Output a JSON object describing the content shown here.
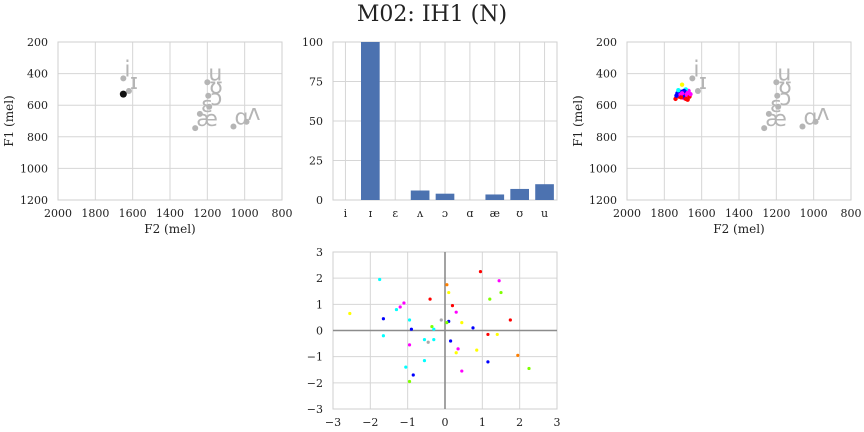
{
  "title": "M02: IH1 (N)",
  "vowel_labels": [
    "i",
    "ɪ",
    "ɛ",
    "ʌ",
    "ɔ",
    "ɑ",
    "æ",
    "ʊ",
    "u"
  ],
  "chart_data": [
    {
      "type": "scatter",
      "name": "formant-left",
      "xlabel": "F2 (mel)",
      "ylabel": "F1 (mel)",
      "xlim": [
        2000,
        800
      ],
      "ylim": [
        1200,
        200
      ],
      "xticks": [
        "2000",
        "1800",
        "1600",
        "1400",
        "1200",
        "1000",
        "800"
      ],
      "yticks": [
        "200",
        "400",
        "600",
        "800",
        "1000",
        "1200"
      ],
      "grid": true,
      "vowel_positions": [
        {
          "label": "i",
          "x": 1650,
          "y": 430
        },
        {
          "label": "ɪ",
          "x": 1620,
          "y": 510
        },
        {
          "label": "ɛ",
          "x": 1240,
          "y": 655
        },
        {
          "label": "ʌ",
          "x": 990,
          "y": 705
        },
        {
          "label": "ɔ",
          "x": 1190,
          "y": 610
        },
        {
          "label": "ɑ",
          "x": 1060,
          "y": 735
        },
        {
          "label": "æ",
          "x": 1265,
          "y": 745
        },
        {
          "label": "ʊ",
          "x": 1195,
          "y": 540
        },
        {
          "label": "u",
          "x": 1200,
          "y": 455
        }
      ],
      "highlight": {
        "x": 1650,
        "y": 530
      }
    },
    {
      "type": "bar",
      "name": "bar-middle",
      "categories": [
        "i",
        "ɪ",
        "ɛ",
        "ʌ",
        "ɔ",
        "ɑ",
        "æ",
        "ʊ",
        "u"
      ],
      "values": [
        0,
        100,
        0,
        6,
        4,
        0,
        3.5,
        7,
        10
      ],
      "ylim": [
        0,
        100
      ],
      "yticks": [
        "0",
        "25",
        "50",
        "75",
        "100"
      ],
      "grid": true,
      "color": "#4c72b0"
    },
    {
      "type": "scatter",
      "name": "formant-right",
      "xlabel": "F2 (mel)",
      "ylabel": "F1 (mel)",
      "xlim": [
        2000,
        800
      ],
      "ylim": [
        1200,
        200
      ],
      "xticks": [
        "2000",
        "1800",
        "1600",
        "1400",
        "1200",
        "1000",
        "800"
      ],
      "yticks": [
        "200",
        "400",
        "600",
        "800",
        "1000",
        "1200"
      ],
      "grid": true,
      "points": [
        {
          "x": 1700,
          "y": 520,
          "color": "#0000ff"
        },
        {
          "x": 1690,
          "y": 530,
          "color": "#ff0000"
        },
        {
          "x": 1680,
          "y": 540,
          "color": "#ff00ff"
        },
        {
          "x": 1710,
          "y": 515,
          "color": "#0000ff"
        },
        {
          "x": 1720,
          "y": 545,
          "color": "#ff0000"
        },
        {
          "x": 1670,
          "y": 510,
          "color": "#ff00ff"
        },
        {
          "x": 1695,
          "y": 555,
          "color": "#ff00ff"
        },
        {
          "x": 1730,
          "y": 525,
          "color": "#0000ff"
        },
        {
          "x": 1685,
          "y": 500,
          "color": "#00ffff"
        },
        {
          "x": 1705,
          "y": 470,
          "color": "#ffff00"
        },
        {
          "x": 1740,
          "y": 560,
          "color": "#ff0000"
        },
        {
          "x": 1675,
          "y": 565,
          "color": "#ff0000"
        },
        {
          "x": 1690,
          "y": 515,
          "color": "#0000ff"
        },
        {
          "x": 1715,
          "y": 535,
          "color": "#ff00ff"
        },
        {
          "x": 1665,
          "y": 545,
          "color": "#ff0000"
        },
        {
          "x": 1700,
          "y": 545,
          "color": "#0000ff"
        },
        {
          "x": 1725,
          "y": 505,
          "color": "#00ffff"
        },
        {
          "x": 1680,
          "y": 525,
          "color": "#ff00ff"
        },
        {
          "x": 1710,
          "y": 550,
          "color": "#ff0000"
        },
        {
          "x": 1695,
          "y": 510,
          "color": "#0000ff"
        },
        {
          "x": 1660,
          "y": 530,
          "color": "#ff00ff"
        },
        {
          "x": 1735,
          "y": 540,
          "color": "#0000ff"
        },
        {
          "x": 1685,
          "y": 560,
          "color": "#ff0000"
        },
        {
          "x": 1705,
          "y": 525,
          "color": "#ff00ff"
        }
      ]
    },
    {
      "type": "scatter",
      "name": "scatter-bottom",
      "xlim": [
        -3,
        3
      ],
      "ylim": [
        -3,
        3
      ],
      "xticks": [
        "−3",
        "−2",
        "−1",
        "0",
        "1",
        "2",
        "3"
      ],
      "yticks": [
        "−3",
        "−2",
        "−1",
        "0",
        "1",
        "2",
        "3"
      ],
      "grid": true,
      "points": [
        {
          "x": 0.95,
          "y": 2.25,
          "color": "#ff0000"
        },
        {
          "x": -1.75,
          "y": 1.95,
          "color": "#00ffff"
        },
        {
          "x": 1.45,
          "y": 1.9,
          "color": "#ff00ff"
        },
        {
          "x": 0.05,
          "y": 1.75,
          "color": "#ff7f00"
        },
        {
          "x": 0.1,
          "y": 1.45,
          "color": "#ffff00"
        },
        {
          "x": 1.5,
          "y": 1.45,
          "color": "#7fff00"
        },
        {
          "x": -0.4,
          "y": 1.2,
          "color": "#ff0000"
        },
        {
          "x": 1.2,
          "y": 1.2,
          "color": "#7fff00"
        },
        {
          "x": -1.1,
          "y": 1.05,
          "color": "#ff00ff"
        },
        {
          "x": 0.2,
          "y": 0.95,
          "color": "#ff0000"
        },
        {
          "x": -1.2,
          "y": 0.9,
          "color": "#ff00ff"
        },
        {
          "x": 0.3,
          "y": 0.7,
          "color": "#ff00ff"
        },
        {
          "x": -1.3,
          "y": 0.8,
          "color": "#00ffff"
        },
        {
          "x": -2.55,
          "y": 0.65,
          "color": "#ffff00"
        },
        {
          "x": -1.65,
          "y": 0.45,
          "color": "#0000ff"
        },
        {
          "x": -0.95,
          "y": 0.4,
          "color": "#00ffff"
        },
        {
          "x": -0.1,
          "y": 0.4,
          "color": "#aaaaaa"
        },
        {
          "x": 0.1,
          "y": 0.35,
          "color": "#0000ff"
        },
        {
          "x": 0.05,
          "y": 0.3,
          "color": "#7fff00"
        },
        {
          "x": 0.45,
          "y": 0.3,
          "color": "#ffff00"
        },
        {
          "x": 1.75,
          "y": 0.4,
          "color": "#ff0000"
        },
        {
          "x": -0.9,
          "y": 0.05,
          "color": "#0000ff"
        },
        {
          "x": -0.35,
          "y": 0.15,
          "color": "#7fff00"
        },
        {
          "x": -0.3,
          "y": 0.05,
          "color": "#00ffff"
        },
        {
          "x": 0.75,
          "y": 0.1,
          "color": "#0000ff"
        },
        {
          "x": 1.4,
          "y": -0.15,
          "color": "#ffff00"
        },
        {
          "x": 1.15,
          "y": -0.15,
          "color": "#ff0000"
        },
        {
          "x": -1.65,
          "y": -0.2,
          "color": "#00ffff"
        },
        {
          "x": -0.3,
          "y": -0.35,
          "color": "#00ffff"
        },
        {
          "x": -0.55,
          "y": -0.35,
          "color": "#00ffff"
        },
        {
          "x": 0.15,
          "y": -0.4,
          "color": "#0000ff"
        },
        {
          "x": -0.95,
          "y": -0.55,
          "color": "#ff00ff"
        },
        {
          "x": -0.45,
          "y": -0.45,
          "color": "#aaaaaa"
        },
        {
          "x": 0.35,
          "y": -0.7,
          "color": "#ff00ff"
        },
        {
          "x": 0.85,
          "y": -0.75,
          "color": "#ffff00"
        },
        {
          "x": 0.3,
          "y": -0.85,
          "color": "#ffff00"
        },
        {
          "x": 1.95,
          "y": -0.95,
          "color": "#ff7f00"
        },
        {
          "x": -0.55,
          "y": -1.15,
          "color": "#00ffff"
        },
        {
          "x": 1.15,
          "y": -1.2,
          "color": "#0000ff"
        },
        {
          "x": -1.05,
          "y": -1.4,
          "color": "#00ffff"
        },
        {
          "x": 2.25,
          "y": -1.45,
          "color": "#7fff00"
        },
        {
          "x": 0.45,
          "y": -1.55,
          "color": "#ff00ff"
        },
        {
          "x": -0.85,
          "y": -1.7,
          "color": "#0000ff"
        },
        {
          "x": -0.95,
          "y": -1.95,
          "color": "#7fff00"
        }
      ]
    }
  ]
}
